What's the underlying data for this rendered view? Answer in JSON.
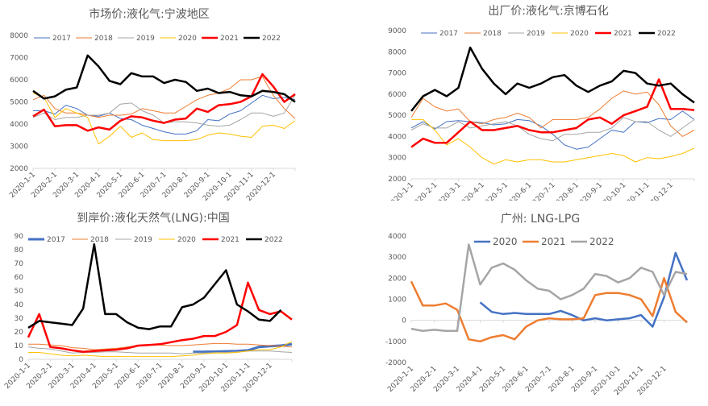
{
  "chart_data": [
    {
      "type": "line",
      "title": "市场价:液化气:宁波地区",
      "xlabel": "",
      "ylabel": "",
      "ylim": [
        2000,
        8000
      ],
      "ystep": 1000,
      "x_tick_labels": [
        "2020-1-1",
        "2020-2-1",
        "2020-3-1",
        "2020-4-1",
        "2020-5-1",
        "2020-6-1",
        "2020-7-1",
        "2020-8-1",
        "2020-9-1",
        "2020-10-1",
        "2020-11-1",
        "2020-12-1"
      ],
      "x_months": [
        0,
        0.5,
        1,
        1.5,
        2,
        2.5,
        3,
        3.5,
        4,
        4.5,
        5,
        5.5,
        6,
        6.5,
        7,
        7.5,
        8,
        8.5,
        9,
        9.5,
        10,
        10.5,
        11,
        11.5,
        12
      ],
      "legend_position": "top",
      "series": [
        {
          "name": "2017",
          "color": "#4472C4",
          "values": [
            4600,
            4600,
            4450,
            4850,
            4700,
            4400,
            4350,
            4500,
            4250,
            4200,
            3950,
            3800,
            3650,
            3550,
            3550,
            3700,
            4200,
            4150,
            4450,
            4600,
            4950,
            5300,
            5150,
            5200,
            5100
          ]
        },
        {
          "name": "2018",
          "color": "#ED7D31",
          "values": [
            5100,
            5300,
            4700,
            4500,
            4500,
            4400,
            4300,
            4400,
            4400,
            4450,
            4700,
            4600,
            4500,
            4500,
            4800,
            5100,
            5300,
            5400,
            5600,
            6000,
            6000,
            6150,
            5300,
            4700,
            4250
          ]
        },
        {
          "name": "2019",
          "color": "#A5A5A5",
          "values": [
            4300,
            4500,
            4200,
            4300,
            4300,
            4400,
            4400,
            4500,
            4900,
            4950,
            4600,
            4400,
            4050,
            4100,
            4100,
            4050,
            3950,
            3900,
            3950,
            4200,
            4500,
            4500,
            4350,
            4500,
            5300
          ]
        },
        {
          "name": "2020",
          "color": "#FFC000",
          "values": [
            5400,
            5200,
            4300,
            4700,
            4500,
            4300,
            3100,
            3450,
            3900,
            3400,
            3600,
            3300,
            3250,
            3250,
            3250,
            3300,
            3500,
            3600,
            3550,
            3450,
            3400,
            3900,
            3950,
            3800,
            4150
          ]
        },
        {
          "name": "2021",
          "color": "#FF0000",
          "values": [
            4350,
            4650,
            3900,
            3950,
            3950,
            3700,
            3850,
            3750,
            4150,
            4350,
            4300,
            4150,
            4050,
            4200,
            4250,
            4700,
            4550,
            4850,
            4900,
            5000,
            5250,
            6250,
            5700,
            5000,
            5350
          ]
        },
        {
          "name": "2022",
          "color": "#000000",
          "values": [
            5500,
            5150,
            5250,
            5550,
            5650,
            7100,
            6600,
            5950,
            5800,
            6300,
            6150,
            6150,
            5850,
            6000,
            5900,
            5500,
            5600,
            5400,
            5450,
            5300,
            5250,
            5500,
            5450,
            5350,
            5000
          ]
        }
      ]
    },
    {
      "type": "line",
      "title": "出厂价:液化气:京博石化",
      "xlabel": "",
      "ylabel": "",
      "ylim": [
        2000,
        9000
      ],
      "ystep": 1000,
      "x_tick_labels": [
        "2020-1-1",
        "2020-2-1",
        "2020-3-1",
        "2020-4-1",
        "2020-5-1",
        "2020-6-1",
        "2020-7-1",
        "2020-8-1",
        "2020-9-1",
        "2020-10-1",
        "2020-11-1",
        "2020-12-1"
      ],
      "x_months": [
        0,
        0.5,
        1,
        1.5,
        2,
        2.5,
        3,
        3.5,
        4,
        4.5,
        5,
        5.5,
        6,
        6.5,
        7,
        7.5,
        8,
        8.5,
        9,
        9.5,
        10,
        10.5,
        11,
        11.5,
        12
      ],
      "legend_position": "top",
      "series": [
        {
          "name": "2017",
          "color": "#4472C4",
          "values": [
            4400,
            4700,
            4350,
            4700,
            4750,
            4700,
            4650,
            4550,
            4600,
            4800,
            4750,
            4500,
            4100,
            3600,
            3400,
            3500,
            3900,
            4300,
            4200,
            4700,
            4650,
            4850,
            4800,
            5200,
            4800
          ]
        },
        {
          "name": "2018",
          "color": "#ED7D31",
          "values": [
            4900,
            5800,
            5400,
            5200,
            5300,
            4700,
            4600,
            4800,
            4900,
            5100,
            4900,
            4400,
            4800,
            4800,
            4800,
            4900,
            5300,
            5800,
            6150,
            6000,
            6100,
            5500,
            4500,
            4000,
            4300
          ]
        },
        {
          "name": "2019",
          "color": "#A5A5A5",
          "values": [
            4300,
            4600,
            4400,
            4400,
            4700,
            4400,
            4500,
            4600,
            4700,
            4500,
            4100,
            3900,
            3800,
            4100,
            4100,
            4200,
            4200,
            4400,
            4900,
            4700,
            4700,
            4300,
            4000,
            4400,
            4800
          ]
        },
        {
          "name": "2020",
          "color": "#FFC000",
          "values": [
            4800,
            4800,
            4300,
            3600,
            3900,
            3500,
            3000,
            2700,
            2900,
            2800,
            2900,
            2900,
            2800,
            2800,
            2900,
            3000,
            3100,
            3200,
            3100,
            2800,
            3000,
            2950,
            3050,
            3200,
            3450
          ]
        },
        {
          "name": "2021",
          "color": "#FF0000",
          "values": [
            3500,
            3900,
            3700,
            3700,
            4200,
            4700,
            4300,
            4300,
            4400,
            4500,
            4300,
            4200,
            4200,
            4300,
            4400,
            4800,
            4900,
            4600,
            5000,
            5200,
            5400,
            6700,
            5300,
            5300,
            5250
          ]
        },
        {
          "name": "2022",
          "color": "#000000",
          "values": [
            5200,
            5900,
            6200,
            5900,
            6300,
            8200,
            7200,
            6500,
            6000,
            6500,
            6300,
            6500,
            6800,
            6900,
            6400,
            6100,
            6400,
            6600,
            7100,
            7000,
            6500,
            6400,
            6500,
            6000,
            5600
          ]
        }
      ]
    },
    {
      "type": "line",
      "title": "到岸价:液化天然气(LNG):中国",
      "xlabel": "",
      "ylabel": "",
      "ylim": [
        0,
        90
      ],
      "ystep": 10,
      "x_tick_labels": [
        "2020-1-1",
        "2020-2-1",
        "2020-3-1",
        "2020-4-1",
        "2020-5-1",
        "2020-6-1",
        "2020-7-1",
        "2020-8-1",
        "2020-9-1",
        "2020-10-1",
        "2020-11-1",
        "2020-12-1"
      ],
      "x_months": [
        0,
        0.5,
        1,
        1.5,
        2,
        2.5,
        3,
        3.5,
        4,
        4.5,
        5,
        5.5,
        6,
        6.5,
        7,
        7.5,
        8,
        8.5,
        9,
        9.5,
        10,
        10.5,
        11,
        11.5,
        12
      ],
      "legend_position": "top",
      "series": [
        {
          "name": "2017",
          "color": "#4472C4",
          "values": [
            null,
            null,
            null,
            null,
            null,
            null,
            null,
            null,
            null,
            null,
            null,
            null,
            null,
            null,
            null,
            5.5,
            5.5,
            5.6,
            5.8,
            6,
            6.5,
            9,
            9.5,
            10,
            11
          ]
        },
        {
          "name": "2018",
          "color": "#ED7D31",
          "values": [
            11,
            11,
            10.5,
            10,
            8.5,
            8,
            7,
            7.5,
            8,
            9,
            10,
            10.5,
            10.5,
            10,
            10,
            10.5,
            11,
            11.5,
            11.5,
            11,
            11,
            10.5,
            10,
            9.5,
            9
          ]
        },
        {
          "name": "2019",
          "color": "#A5A5A5",
          "values": [
            9,
            8,
            7.5,
            6,
            4.5,
            5,
            5,
            5.5,
            5.5,
            5,
            4.5,
            4.5,
            4.5,
            4.5,
            4,
            4.5,
            4.5,
            5,
            5,
            5.5,
            6,
            6,
            6,
            5.5,
            5
          ]
        },
        {
          "name": "2020",
          "color": "#FFC000",
          "values": [
            5,
            5,
            4,
            3,
            2.5,
            3,
            2.5,
            2,
            2,
            2,
            2,
            2,
            2,
            2,
            2.5,
            3,
            4,
            4.5,
            4.5,
            5,
            6,
            7,
            7,
            9,
            13
          ]
        },
        {
          "name": "2021",
          "color": "#FF0000",
          "values": [
            16,
            33,
            9,
            8,
            6.5,
            5.5,
            6,
            6.5,
            7,
            8,
            10,
            10.5,
            11,
            12.5,
            14,
            15,
            17,
            17,
            20,
            25,
            56,
            36,
            33,
            35,
            29
          ]
        },
        {
          "name": "2022",
          "color": "#000000",
          "values": [
            23,
            28,
            27,
            26,
            25,
            37,
            84,
            33,
            33,
            27,
            23,
            22,
            24,
            24,
            38,
            40,
            45,
            55,
            65,
            40,
            35,
            29,
            28,
            36,
            null
          ]
        }
      ]
    },
    {
      "type": "line",
      "title": "广州: LNG-LPG",
      "xlabel": "",
      "ylabel": "",
      "ylim": [
        -2000,
        4000
      ],
      "ystep": 1000,
      "x_tick_labels": [
        "2020-1-1",
        "2020-2-1",
        "2020-3-1",
        "2020-4-1",
        "2020-5-1",
        "2020-6-1",
        "2020-7-1",
        "2020-8-1",
        "2020-9-1",
        "2020-10-1",
        "2020-11-1",
        "2020-12-1"
      ],
      "x_months": [
        0,
        0.5,
        1,
        1.5,
        2,
        2.5,
        3,
        3.5,
        4,
        4.5,
        5,
        5.5,
        6,
        6.5,
        7,
        7.5,
        8,
        8.5,
        9,
        9.5,
        10,
        10.5,
        11,
        11.5,
        12
      ],
      "legend_position": "top",
      "series": [
        {
          "name": "2020",
          "color": "#4472C4",
          "values": [
            null,
            null,
            null,
            null,
            null,
            null,
            850,
            400,
            300,
            350,
            300,
            300,
            300,
            450,
            250,
            0,
            100,
            0,
            50,
            100,
            250,
            -300,
            1100,
            3200,
            1900
          ]
        },
        {
          "name": "2021",
          "color": "#ED7D31",
          "values": [
            1850,
            700,
            700,
            800,
            500,
            -900,
            -1000,
            -800,
            -700,
            -900,
            -300,
            0,
            100,
            50,
            50,
            100,
            1200,
            1300,
            1300,
            1200,
            1000,
            200,
            2000,
            400,
            -100
          ]
        },
        {
          "name": "2022",
          "color": "#A5A5A5",
          "values": [
            -400,
            -500,
            -450,
            -500,
            -500,
            3600,
            1700,
            2500,
            2700,
            2400,
            1900,
            1500,
            1400,
            1000,
            1200,
            1500,
            2200,
            2100,
            1800,
            2000,
            2500,
            2300,
            1200,
            2300,
            2200
          ]
        }
      ]
    }
  ]
}
